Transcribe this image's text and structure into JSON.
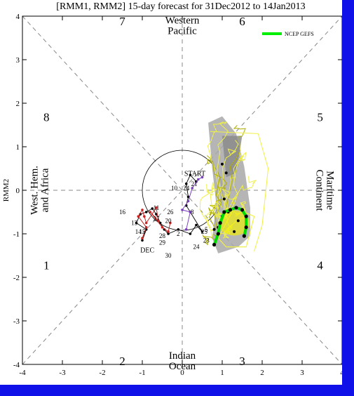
{
  "chart_data": {
    "type": "scatter",
    "title": "[RMM1, RMM2] 15-day forecast for 31Dec2012 to 14Jan2013",
    "xlabel": "RMM1",
    "ylabel": "RMM2",
    "xlim": [
      -4,
      4
    ],
    "ylim": [
      -4,
      4
    ],
    "xticks": [
      "-4",
      "-3",
      "-2",
      "-1",
      "0",
      "1",
      "2",
      "3",
      "4"
    ],
    "yticks": [
      "-4",
      "-3",
      "-2",
      "-1",
      "0",
      "1",
      "2",
      "3",
      "4"
    ],
    "phases": [
      {
        "label": "1",
        "x": -3.4,
        "y": -1.7
      },
      {
        "label": "2",
        "x": -1.5,
        "y": -3.9
      },
      {
        "label": "3",
        "x": 1.5,
        "y": -3.9
      },
      {
        "label": "4",
        "x": 3.45,
        "y": -1.7
      },
      {
        "label": "5",
        "x": 3.45,
        "y": 1.7
      },
      {
        "label": "6",
        "x": 1.5,
        "y": 3.9
      },
      {
        "label": "7",
        "x": -1.5,
        "y": 3.9
      },
      {
        "label": "8",
        "x": -3.4,
        "y": 1.7
      }
    ],
    "regions": [
      {
        "line1": "Western",
        "line2": "Pacific",
        "x": 0,
        "y": 3.8
      },
      {
        "line1": "Indian",
        "line2": "Ocean",
        "x": 0,
        "y": -3.9
      },
      {
        "line1": "West. Hem.",
        "line2": "and Africa",
        "x": -3.55,
        "y": 0
      },
      {
        "line1": "Maritime",
        "line2": "Continent",
        "x": 3.55,
        "y": 0
      }
    ],
    "legend": {
      "label": "NCEP GEFS",
      "color": "#00ee00",
      "position": "top-right"
    },
    "colors": {
      "dec": "#cc2222",
      "jan": "#7b3fc0",
      "ensemble": "#f0f04a",
      "ensemble_dark": "#b0b000",
      "spread": "#a8a8a8",
      "mean": "#00dd00"
    },
    "dec_series": {
      "label": "DEC",
      "points": [
        [
          -1.0,
          -1.1
        ],
        [
          -0.9,
          -0.85
        ],
        [
          -1.1,
          -0.6
        ],
        [
          -1.0,
          -0.45
        ],
        [
          -0.95,
          -0.6
        ],
        [
          -0.9,
          -0.75
        ],
        [
          -0.65,
          -0.4
        ],
        [
          -0.6,
          -0.7
        ],
        [
          -0.8,
          -0.5
        ],
        [
          -0.5,
          -0.85
        ],
        [
          -0.35,
          -0.95
        ],
        [
          -0.3,
          -0.75
        ]
      ],
      "labels": [
        {
          "t": "14",
          "x": -1.1,
          "y": -1.0
        },
        {
          "t": "13",
          "x": -1.2,
          "y": -0.8
        },
        {
          "t": "16",
          "x": -1.5,
          "y": -0.55
        },
        {
          "t": "15",
          "x": -1.0,
          "y": -1.0
        }
      ]
    },
    "obs_series": {
      "label": "START",
      "points": [
        [
          -1.0,
          -1.15
        ],
        [
          -0.9,
          -0.9
        ],
        [
          -1.15,
          -0.75
        ],
        [
          -1.05,
          -0.55
        ],
        [
          -0.9,
          -0.5
        ],
        [
          -0.75,
          -0.42
        ],
        [
          -0.65,
          -0.55
        ],
        [
          -0.55,
          -0.75
        ],
        [
          -0.45,
          -0.9
        ],
        [
          -0.35,
          -1.0
        ],
        [
          -0.1,
          -0.9
        ],
        [
          0.2,
          -1.0
        ],
        [
          0.35,
          -0.8
        ],
        [
          0.5,
          -0.95
        ],
        [
          0.2,
          -0.5
        ],
        [
          0.1,
          -0.35
        ],
        [
          0.15,
          -0.15
        ],
        [
          0.1,
          0.15
        ],
        [
          0.2,
          0.35
        ],
        [
          0.35,
          0.2
        ]
      ],
      "labels": [
        {
          "t": "11",
          "x": -0.65,
          "y": -0.45
        },
        {
          "t": "26",
          "x": -0.3,
          "y": -0.55
        },
        {
          "t": "8",
          "x": 0.25,
          "y": -0.55
        },
        {
          "t": "10",
          "x": -0.2,
          "y": 0.0
        },
        {
          "t": "24",
          "x": 0.1,
          "y": 0.0
        },
        {
          "t": "21",
          "x": 0.3,
          "y": 0.1
        },
        {
          "t": "28",
          "x": -0.5,
          "y": -1.1
        },
        {
          "t": "27",
          "x": -0.65,
          "y": -0.7
        },
        {
          "t": "29",
          "x": -0.5,
          "y": -1.25
        },
        {
          "t": "30",
          "x": -0.35,
          "y": -1.55
        },
        {
          "t": "2",
          "x": -0.1,
          "y": -1.05
        },
        {
          "t": "24",
          "x": 0.35,
          "y": -1.35
        },
        {
          "t": "23",
          "x": 0.6,
          "y": -1.2
        },
        {
          "t": "25",
          "x": 0.55,
          "y": -1.0
        },
        {
          "t": "5",
          "x": 0.6,
          "y": -0.95
        },
        {
          "t": "20",
          "x": -0.35,
          "y": -0.75
        }
      ]
    },
    "ensemble_mean": [
      [
        0.8,
        -1.25
      ],
      [
        0.9,
        -1.0
      ],
      [
        0.95,
        -0.75
      ],
      [
        1.05,
        -0.5
      ],
      [
        1.2,
        -0.45
      ],
      [
        1.35,
        -0.4
      ],
      [
        1.5,
        -0.45
      ],
      [
        1.6,
        -0.6
      ],
      [
        1.6,
        -0.85
      ],
      [
        1.55,
        -1.05
      ]
    ]
  }
}
